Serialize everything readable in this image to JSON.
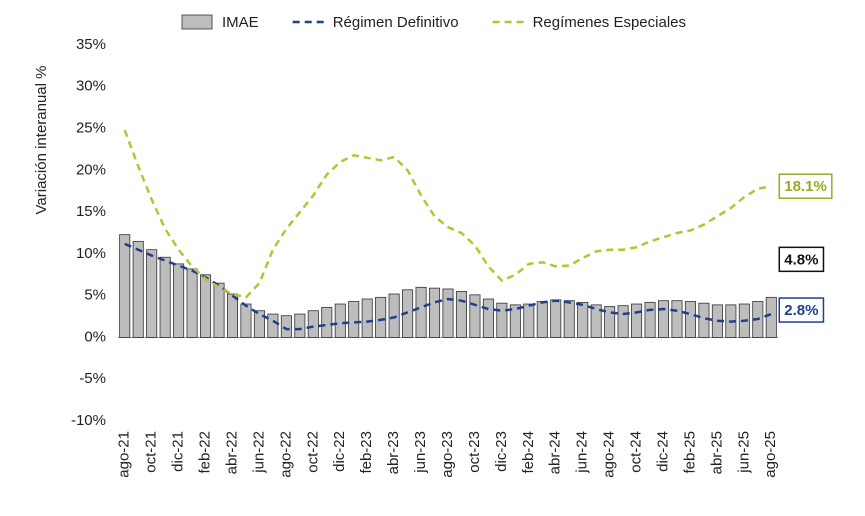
{
  "chart_data": {
    "type": "bar-line",
    "y_axis_label": "Variación interanual %",
    "categories": [
      "ago-21",
      null,
      "oct-21",
      null,
      "dic-21",
      null,
      "feb-22",
      null,
      "abr-22",
      null,
      "jun-22",
      null,
      "ago-22",
      null,
      "oct-22",
      null,
      "dic-22",
      null,
      "feb-23",
      null,
      "abr-23",
      null,
      "jun-23",
      null,
      "ago-23",
      null,
      "oct-23",
      null,
      "dic-23",
      null,
      "feb-24",
      null,
      "abr-24",
      null,
      "jun-24",
      null,
      "ago-24",
      null,
      "oct-24",
      null,
      "dic-24",
      null,
      "feb-25",
      null,
      "abr-25",
      null,
      "jun-25",
      null,
      "ago-25"
    ],
    "series": [
      {
        "name": "IMAE",
        "kind": "bar",
        "color": "#bdbdbd",
        "end_label": "4.8%",
        "end_label_color": "#111111",
        "values": [
          12.3,
          11.5,
          10.5,
          9.6,
          8.8,
          8.2,
          7.5,
          6.5,
          5.2,
          4.0,
          3.2,
          2.8,
          2.6,
          2.8,
          3.2,
          3.6,
          4.0,
          4.3,
          4.6,
          4.8,
          5.2,
          5.7,
          6.0,
          5.9,
          5.8,
          5.5,
          5.1,
          4.6,
          4.1,
          3.9,
          4.0,
          4.3,
          4.5,
          4.4,
          4.2,
          3.9,
          3.7,
          3.8,
          4.0,
          4.2,
          4.4,
          4.4,
          4.3,
          4.1,
          3.9,
          3.9,
          4.0,
          4.3,
          4.8
        ]
      },
      {
        "name": "Régimen Definitivo",
        "kind": "line",
        "color": "#1f3f8f",
        "end_label": "2.8%",
        "end_label_color": "#1f3f8f",
        "values": [
          11.2,
          10.5,
          9.8,
          9.2,
          8.6,
          8.0,
          7.2,
          6.2,
          5.0,
          3.8,
          2.8,
          2.0,
          1.0,
          1.0,
          1.3,
          1.5,
          1.7,
          1.8,
          1.9,
          2.1,
          2.4,
          3.0,
          3.6,
          4.2,
          4.6,
          4.4,
          3.9,
          3.4,
          3.2,
          3.4,
          3.8,
          4.2,
          4.4,
          4.2,
          3.9,
          3.4,
          3.0,
          2.8,
          3.0,
          3.3,
          3.4,
          3.2,
          2.8,
          2.3,
          2.0,
          1.9,
          2.0,
          2.2,
          2.8
        ]
      },
      {
        "name": "Regímenes Especiales",
        "kind": "line",
        "color": "#b5c334",
        "end_label": "18.1%",
        "end_label_color": "#9aa82a",
        "values": [
          24.8,
          20.5,
          16.5,
          13.0,
          10.5,
          8.5,
          7.0,
          6.0,
          5.2,
          4.8,
          6.5,
          10.5,
          13.0,
          15.0,
          17.0,
          19.5,
          21.0,
          21.8,
          21.5,
          21.2,
          21.6,
          20.0,
          17.0,
          14.5,
          13.2,
          12.5,
          11.0,
          8.5,
          6.8,
          7.5,
          8.8,
          9.0,
          8.5,
          8.6,
          9.5,
          10.3,
          10.5,
          10.5,
          10.8,
          11.5,
          12.0,
          12.5,
          12.8,
          13.5,
          14.5,
          15.5,
          16.8,
          17.8,
          18.1
        ]
      }
    ],
    "ylim": [
      -10,
      35
    ],
    "yticks": [
      {
        "value": -10,
        "label": "-10%"
      },
      {
        "value": -5,
        "label": "-5%"
      },
      {
        "value": 0,
        "label": "0%"
      },
      {
        "value": 5,
        "label": "5%"
      },
      {
        "value": 10,
        "label": "10%"
      },
      {
        "value": 15,
        "label": "15%"
      },
      {
        "value": 20,
        "label": "20%"
      },
      {
        "value": 25,
        "label": "25%"
      },
      {
        "value": 30,
        "label": "30%"
      },
      {
        "value": 35,
        "label": "35%"
      }
    ],
    "legend": "top"
  }
}
